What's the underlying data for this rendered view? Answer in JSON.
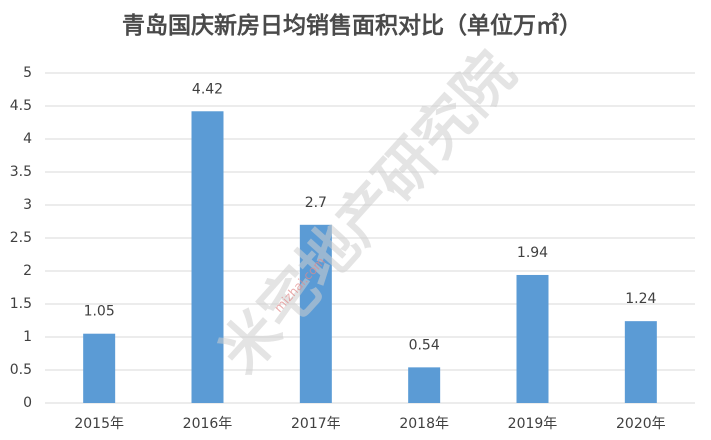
{
  "chart_data": {
    "type": "bar",
    "title": "青岛国庆新房日均销售面积对比（单位万㎡）",
    "categories": [
      "2015年",
      "2016年",
      "2017年",
      "2018年",
      "2019年",
      "2020年"
    ],
    "values": [
      1.05,
      4.42,
      2.7,
      0.54,
      1.94,
      1.24
    ],
    "color": "#5b9bd5",
    "ylim": [
      0,
      5
    ],
    "yticks": [
      0,
      0.5,
      1,
      1.5,
      2,
      2.5,
      3,
      3.5,
      4,
      4.5,
      5
    ],
    "grid": true,
    "watermark": "米宅地产研究院",
    "watermark_url": "mizhai.com"
  }
}
